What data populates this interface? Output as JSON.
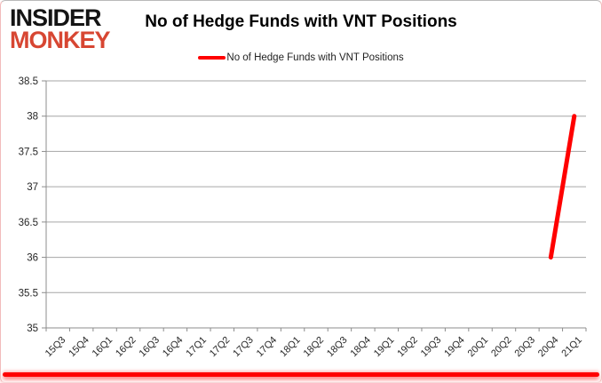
{
  "brand": {
    "line1": "INSIDER",
    "line2": "MONKEY"
  },
  "header": {
    "title": "No of Hedge Funds with VNT Positions"
  },
  "legend": {
    "label": "No of Hedge Funds with VNT Positions",
    "swatch": "red-line"
  },
  "colors": {
    "series_red": "#ff0000",
    "logo_black": "#141414",
    "logo_red": "#d74632",
    "gridline": "#a6a6a6",
    "axis": "#8c8c8c",
    "tick_text": "#262626",
    "bottom_bar_red": "#ff0000"
  },
  "chart_data": {
    "type": "line",
    "title": "No of Hedge Funds with VNT Positions",
    "xlabel": "",
    "ylabel": "",
    "categories": [
      "15Q3",
      "15Q4",
      "16Q1",
      "16Q2",
      "16Q3",
      "16Q4",
      "17Q1",
      "17Q2",
      "17Q3",
      "17Q4",
      "18Q1",
      "18Q2",
      "18Q3",
      "18Q4",
      "19Q1",
      "19Q2",
      "19Q3",
      "19Q4",
      "20Q1",
      "20Q2",
      "20Q3",
      "20Q4",
      "21Q1"
    ],
    "series": [
      {
        "name": "No of Hedge Funds with VNT Positions",
        "color": "#ff0000",
        "values": [
          null,
          null,
          null,
          null,
          null,
          null,
          null,
          null,
          null,
          null,
          null,
          null,
          null,
          null,
          null,
          null,
          null,
          null,
          null,
          null,
          null,
          36,
          38
        ]
      }
    ],
    "ylim": [
      35,
      38.5
    ],
    "ytick_step": 0.5,
    "ytick_labels": [
      "35",
      "35.5",
      "36",
      "36.5",
      "37",
      "37.5",
      "38",
      "38.5"
    ],
    "grid": "horizontal",
    "legend_position": "top-center",
    "x_labels_rotated_deg": 45
  }
}
